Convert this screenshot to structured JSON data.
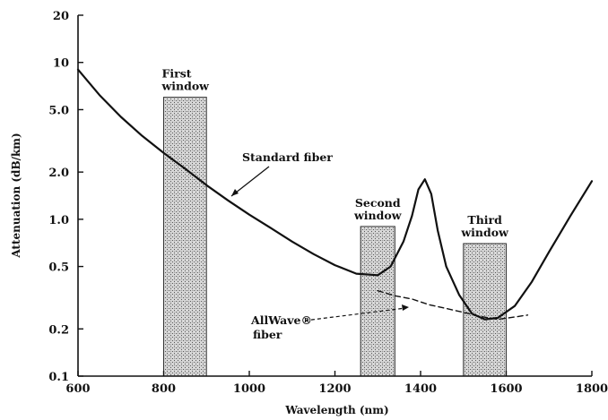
{
  "chart_data": {
    "type": "line",
    "xlabel": "Wavelength (nm)",
    "ylabel": "Attenuation (dB/km)",
    "x_scale": "linear",
    "y_scale": "log",
    "xlim": [
      600,
      1800
    ],
    "ylim": [
      0.1,
      20
    ],
    "x_ticks": [
      600,
      800,
      1000,
      1200,
      1400,
      1600,
      1800
    ],
    "y_ticks": [
      0.1,
      0.2,
      0.5,
      1.0,
      2.0,
      5.0,
      10,
      20
    ],
    "y_tick_labels": [
      "0.1",
      "0.2",
      "0.5",
      "1.0",
      "2.0",
      "5.0",
      "10",
      "20"
    ],
    "grid": false,
    "series": [
      {
        "name": "Standard fiber",
        "style": "solid",
        "x": [
          600,
          650,
          700,
          750,
          800,
          850,
          900,
          950,
          1000,
          1050,
          1100,
          1150,
          1200,
          1250,
          1300,
          1330,
          1360,
          1380,
          1395,
          1410,
          1425,
          1440,
          1460,
          1490,
          1520,
          1550,
          1580,
          1620,
          1660,
          1700,
          1750,
          1800
        ],
        "y": [
          9.0,
          6.2,
          4.5,
          3.4,
          2.65,
          2.1,
          1.65,
          1.32,
          1.07,
          0.88,
          0.72,
          0.6,
          0.51,
          0.45,
          0.44,
          0.5,
          0.72,
          1.05,
          1.55,
          1.8,
          1.45,
          0.85,
          0.5,
          0.33,
          0.25,
          0.23,
          0.235,
          0.28,
          0.4,
          0.62,
          1.05,
          1.75
        ]
      },
      {
        "name": "AllWave® fiber",
        "style": "dashed",
        "x": [
          1300,
          1340,
          1380,
          1420,
          1460,
          1500,
          1540,
          1580,
          1620,
          1650
        ],
        "y": [
          0.35,
          0.325,
          0.31,
          0.285,
          0.27,
          0.255,
          0.24,
          0.23,
          0.238,
          0.245
        ]
      }
    ],
    "windows": [
      {
        "label_line1": "First",
        "label_line2": "window",
        "x_start": 800,
        "x_end": 900,
        "y_top": 6.0
      },
      {
        "label_line1": "Second",
        "label_line2": "window",
        "x_start": 1260,
        "x_end": 1340,
        "y_top": 0.9
      },
      {
        "label_line1": "Third",
        "label_line2": "window",
        "x_start": 1500,
        "x_end": 1600,
        "y_top": 0.7
      }
    ],
    "annotations": [
      {
        "text": "Standard fiber",
        "target_series": "Standard fiber"
      },
      {
        "text_line1": "AllWave®",
        "text_line2": "fiber",
        "target_series": "AllWave® fiber"
      }
    ]
  }
}
